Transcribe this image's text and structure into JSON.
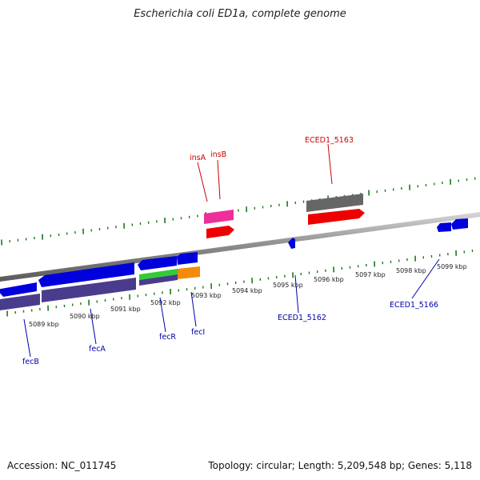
{
  "title": "Escherichia coli ED1a, complete genome",
  "accession": "Accession: NC_011745",
  "summary": "Topology: circular; Length: 5,209,548 bp; Genes: 5,118",
  "scale_labels": [
    "5089 kbp",
    "5090 kbp",
    "5091 kbp",
    "5092 kbp",
    "5093 kbp",
    "5094 kbp",
    "5095 kbp",
    "5096 kbp",
    "5097 kbp",
    "5098 kbp",
    "5099 kbp"
  ],
  "gene_labels": {
    "insA": "insA",
    "insB": "insB",
    "eced5163": "ECED1_5163",
    "fecB": "fecB",
    "fecA": "fecA",
    "fecR": "fecR",
    "fecI": "fecI",
    "eced5162": "ECED1_5162",
    "eced5166": "ECED1_5166"
  },
  "colors": {
    "cds_blue": "#0000dd",
    "gene_purple": "#4a3c8c",
    "mobile_red": "#ee0000",
    "insertion_pink": "#ee2f9a",
    "gray_feature": "#666666",
    "tick_green": "#1a7a1a",
    "fecR_green": "#33cc33",
    "fecI_orange": "#f58a0a"
  }
}
